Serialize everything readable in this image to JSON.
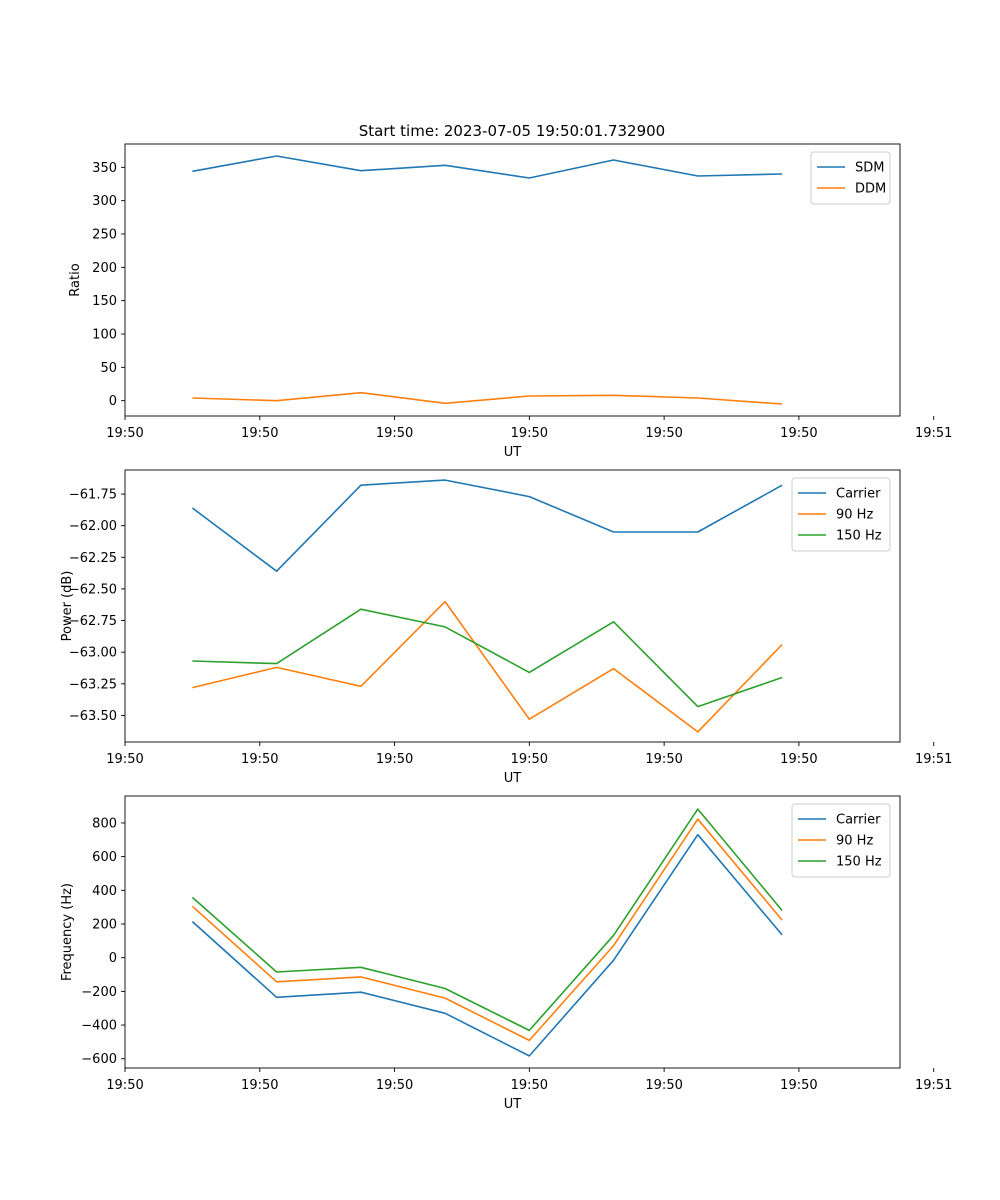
{
  "figure_title": "Start time: 2023-07-05 19:50:01.732900",
  "chart_data": [
    {
      "type": "line",
      "title": "Start time: 2023-07-05 19:50:01.732900",
      "xlabel": "UT",
      "ylabel": "Ratio",
      "xlim": [
        0,
        9.2
      ],
      "ylim": [
        -23,
        385
      ],
      "x_ticks": [
        0,
        1.6,
        3.2,
        4.8,
        6.4,
        8.0,
        9.6
      ],
      "x_tick_labels": [
        "19:50",
        "19:50",
        "19:50",
        "19:50",
        "19:50",
        "19:50",
        "19:51"
      ],
      "y_ticks": [
        0,
        50,
        100,
        150,
        200,
        250,
        300,
        350
      ],
      "y_tick_labels": [
        "0",
        "50",
        "100",
        "150",
        "200",
        "250",
        "300",
        "350"
      ],
      "legend": "top-right",
      "x": [
        0.8,
        1.8,
        2.8,
        3.8,
        4.8,
        5.8,
        6.8,
        7.8
      ],
      "series": [
        {
          "name": "SDM",
          "color": "#1f77b4",
          "values": [
            344,
            367,
            345,
            353,
            334,
            361,
            337,
            340
          ]
        },
        {
          "name": "DDM",
          "color": "#ff7f0e",
          "values": [
            4,
            0,
            12,
            -4,
            7,
            8,
            4,
            -5
          ]
        }
      ]
    },
    {
      "type": "line",
      "title": "",
      "xlabel": "UT",
      "ylabel": "Power (dB)",
      "xlim": [
        0,
        9.2
      ],
      "ylim": [
        -63.71,
        -61.56
      ],
      "x_ticks": [
        0,
        1.6,
        3.2,
        4.8,
        6.4,
        8.0,
        9.6
      ],
      "x_tick_labels": [
        "19:50",
        "19:50",
        "19:50",
        "19:50",
        "19:50",
        "19:50",
        "19:51"
      ],
      "y_ticks": [
        -63.5,
        -63.25,
        -63.0,
        -62.75,
        -62.5,
        -62.25,
        -62.0,
        -61.75
      ],
      "y_tick_labels": [
        "−63.50",
        "−63.25",
        "−63.00",
        "−62.75",
        "−62.50",
        "−62.25",
        "−62.00",
        "−61.75"
      ],
      "legend": "top-right",
      "x": [
        0.8,
        1.8,
        2.8,
        3.8,
        4.8,
        5.8,
        6.8,
        7.8
      ],
      "series": [
        {
          "name": "Carrier",
          "color": "#1f77b4",
          "values": [
            -61.86,
            -62.36,
            -61.68,
            -61.64,
            -61.77,
            -62.05,
            -62.05,
            -61.68
          ]
        },
        {
          "name": "90 Hz",
          "color": "#ff7f0e",
          "values": [
            -63.28,
            -63.12,
            -63.27,
            -62.6,
            -63.53,
            -63.13,
            -63.63,
            -62.94
          ]
        },
        {
          "name": "150 Hz",
          "color": "#2ca02c",
          "values": [
            -63.07,
            -63.09,
            -62.66,
            -62.8,
            -63.16,
            -62.76,
            -63.43,
            -63.2
          ]
        }
      ]
    },
    {
      "type": "line",
      "title": "",
      "xlabel": "UT",
      "ylabel": "Frequency (Hz)",
      "xlim": [
        0,
        9.2
      ],
      "ylim": [
        -655,
        960
      ],
      "x_ticks": [
        0,
        1.6,
        3.2,
        4.8,
        6.4,
        8.0,
        9.6
      ],
      "x_tick_labels": [
        "19:50",
        "19:50",
        "19:50",
        "19:50",
        "19:50",
        "19:50",
        "19:51"
      ],
      "y_ticks": [
        -600,
        -400,
        -200,
        0,
        200,
        400,
        600,
        800
      ],
      "y_tick_labels": [
        "−600",
        "−400",
        "−200",
        "0",
        "200",
        "400",
        "600",
        "800"
      ],
      "legend": "top-right",
      "x": [
        0.8,
        1.8,
        2.8,
        3.8,
        4.8,
        5.8,
        6.8,
        7.8
      ],
      "series": [
        {
          "name": "Carrier",
          "color": "#1f77b4",
          "values": [
            214,
            -235,
            -205,
            -330,
            -583,
            -15,
            730,
            135
          ]
        },
        {
          "name": "90 Hz",
          "color": "#ff7f0e",
          "values": [
            305,
            -143,
            -114,
            -240,
            -491,
            72,
            822,
            223
          ]
        },
        {
          "name": "150 Hz",
          "color": "#2ca02c",
          "values": [
            358,
            -85,
            -57,
            -183,
            -432,
            133,
            882,
            280
          ]
        }
      ]
    }
  ]
}
